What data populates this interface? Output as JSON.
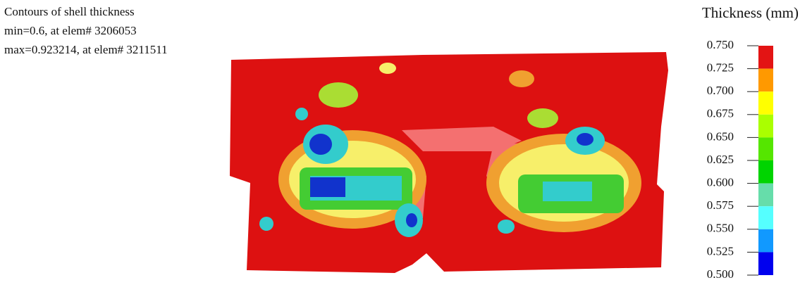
{
  "header": {
    "title": "Contours of shell thickness",
    "min_line": "min=0.6, at elem# 3206053",
    "max_line": "max=0.923214, at elem# 3211511"
  },
  "legend": {
    "title": "Thickness (mm)",
    "ticks": [
      {
        "value": 0.75,
        "label": "0.750"
      },
      {
        "value": 0.725,
        "label": "0.725"
      },
      {
        "value": 0.7,
        "label": "0.700"
      },
      {
        "value": 0.675,
        "label": "0.675"
      },
      {
        "value": 0.65,
        "label": "0.650"
      },
      {
        "value": 0.625,
        "label": "0.625"
      },
      {
        "value": 0.6,
        "label": "0.600"
      },
      {
        "value": 0.575,
        "label": "0.575"
      },
      {
        "value": 0.55,
        "label": "0.550"
      },
      {
        "value": 0.525,
        "label": "0.525"
      },
      {
        "value": 0.5,
        "label": "0.500"
      }
    ],
    "colors": [
      "#e31414",
      "#ff9900",
      "#ffff00",
      "#aaff00",
      "#55e600",
      "#00d400",
      "#66ddaa",
      "#55ffff",
      "#1199ff",
      "#0000ee"
    ]
  }
}
